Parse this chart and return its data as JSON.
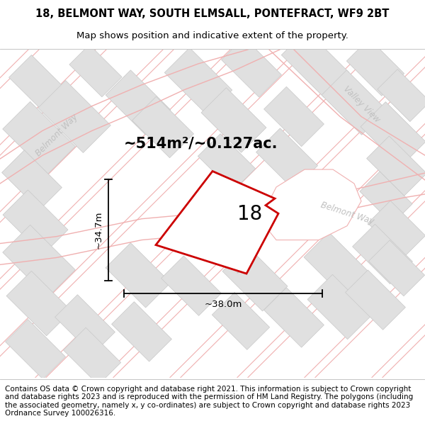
{
  "title": "18, BELMONT WAY, SOUTH ELMSALL, PONTEFRACT, WF9 2BT",
  "subtitle": "Map shows position and indicative extent of the property.",
  "footer": "Contains OS data © Crown copyright and database right 2021. This information is subject to Crown copyright and database rights 2023 and is reproduced with the permission of HM Land Registry. The polygons (including the associated geometry, namely x, y co-ordinates) are subject to Crown copyright and database rights 2023 Ordnance Survey 100026316.",
  "area_label": "~514m²/~0.127ac.",
  "property_number": "18",
  "width_label": "~38.0m",
  "height_label": "~34.7m",
  "map_bg": "#ffffff",
  "building_color": "#e0e0e0",
  "building_edge": "#c8c8c8",
  "road_line_color": "#f0b0b0",
  "property_color": "#cc0000",
  "street_label_color": "#c0c0c0",
  "title_fontsize": 10.5,
  "subtitle_fontsize": 9.5,
  "footer_fontsize": 7.5,
  "area_label_fontsize": 15,
  "number_fontsize": 20,
  "dim_fontsize": 9.5,
  "street_fontsize": 8.5
}
